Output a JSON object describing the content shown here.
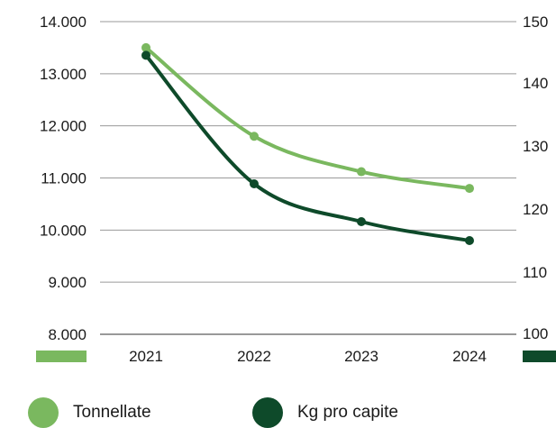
{
  "chart_data": {
    "type": "line",
    "categories": [
      "2021",
      "2022",
      "2023",
      "2024"
    ],
    "series": [
      {
        "name": "Tonnellate",
        "axis": "left",
        "color": "#7ab85f",
        "values": [
          13500,
          11800,
          11120,
          10800
        ]
      },
      {
        "name": "Kg pro capite",
        "axis": "right",
        "color": "#0e4a2a",
        "values": [
          144.5,
          124,
          118,
          115
        ]
      }
    ],
    "y_left": {
      "min": 8000,
      "max": 14000,
      "ticks": [
        "8.000",
        "9.000",
        "10.000",
        "11.000",
        "12.000",
        "13.000",
        "14.000"
      ]
    },
    "y_right": {
      "min": 100,
      "max": 150,
      "ticks": [
        "100",
        "110",
        "120",
        "130",
        "140",
        "150"
      ]
    },
    "grid": true,
    "legend_position": "bottom-left"
  }
}
